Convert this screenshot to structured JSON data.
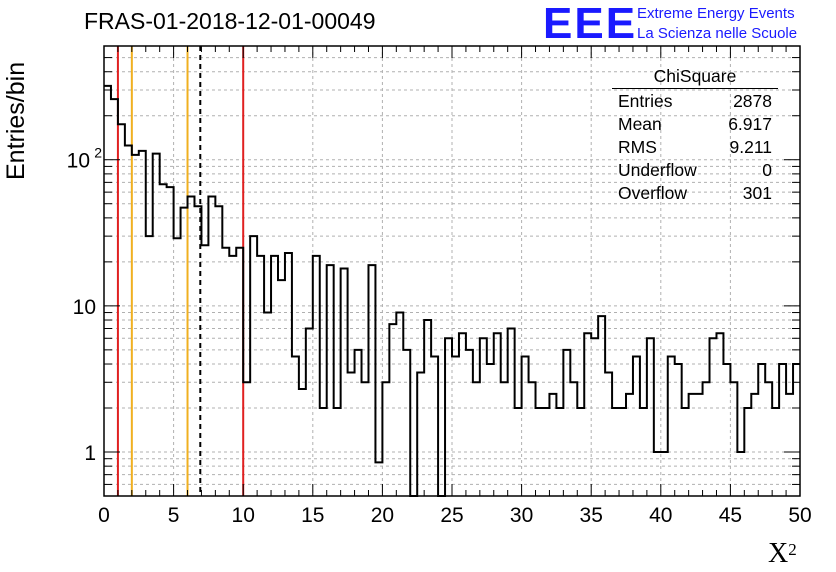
{
  "title": "FRAS-01-2018-12-01-00049",
  "branding": {
    "logo": "EEE",
    "line1": "Extreme Energy Events",
    "line2": "La Scienza nelle Scuole"
  },
  "stats": {
    "header": "ChiSquare",
    "rows": [
      {
        "label": "Entries",
        "value": "2878"
      },
      {
        "label": "Mean",
        "value": "6.917"
      },
      {
        "label": "RMS",
        "value": "9.211"
      },
      {
        "label": "Underflow",
        "value": "0"
      },
      {
        "label": "Overflow",
        "value": "301"
      }
    ]
  },
  "colors": {
    "histogram": "#000000",
    "red_lines": "#e02020",
    "orange_lines": "#f0b020",
    "mean_line": "#000000",
    "grid": "#b0b0b0",
    "logo": "#1a1aff"
  },
  "chart_data": {
    "type": "histogram",
    "xlabel": "X²",
    "ylabel": "Entries/bin",
    "xlim": [
      0,
      50
    ],
    "ylim": [
      0.5,
      600
    ],
    "yscale": "log",
    "grid": true,
    "x_ticks": [
      0,
      5,
      10,
      15,
      20,
      25,
      30,
      35,
      40,
      45,
      50
    ],
    "y_tick_labels": [
      {
        "value": 1,
        "label": "1"
      },
      {
        "value": 10,
        "label": "10"
      },
      {
        "value": 100,
        "label": "10",
        "exp": "2"
      }
    ],
    "bin_width": 0.5,
    "bin_start": 0,
    "values": [
      320,
      260,
      175,
      125,
      108,
      115,
      30,
      110,
      68,
      65,
      29,
      47,
      56,
      48,
      26,
      56,
      48,
      25,
      22,
      25,
      3,
      30,
      22,
      9,
      22,
      15,
      23,
      4.5,
      2.7,
      7,
      22,
      2,
      19,
      2,
      18,
      3.5,
      5,
      3,
      19,
      0.85,
      3,
      7.5,
      9,
      5,
      0.5,
      3.5,
      8,
      4.5,
      0.5,
      6,
      4.5,
      6.5,
      5,
      3,
      6,
      4,
      6.5,
      3,
      7,
      2,
      4.5,
      3,
      2,
      2,
      2.5,
      2,
      5,
      3,
      2,
      6.5,
      6,
      8.5,
      3.5,
      2,
      2,
      2.5,
      4.5,
      2,
      6,
      1,
      1,
      4.5,
      4,
      2,
      2.5,
      2.5,
      3,
      6,
      6.5,
      4,
      3,
      1,
      2,
      2.5,
      4,
      3,
      2,
      4,
      2.5,
      4
    ],
    "vertical_lines": [
      {
        "x": 1,
        "style": "red"
      },
      {
        "x": 2,
        "style": "orange"
      },
      {
        "x": 6,
        "style": "orange"
      },
      {
        "x": 6.917,
        "style": "mean-dashed"
      },
      {
        "x": 10,
        "style": "red"
      }
    ]
  }
}
